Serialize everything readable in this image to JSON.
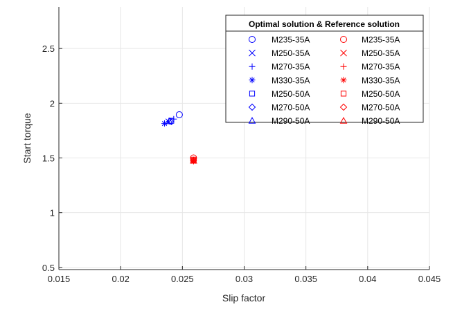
{
  "chart_data": {
    "type": "scatter",
    "title": "",
    "xlabel": "Slip factor",
    "ylabel": "Start torque",
    "xlim": [
      0.015,
      0.045
    ],
    "ylim": [
      0.48,
      2.88
    ],
    "x_ticks": [
      0.015,
      0.02,
      0.025,
      0.03,
      0.035,
      0.04,
      0.045
    ],
    "x_tick_labels": [
      "0.015",
      "0.02",
      "0.025",
      "0.03",
      "0.035",
      "0.04",
      "0.045"
    ],
    "y_ticks": [
      0.5,
      1,
      1.5,
      2,
      2.5
    ],
    "y_tick_labels": [
      "0.5",
      "1",
      "1.5",
      "2",
      "2.5"
    ],
    "grid": true,
    "legend": {
      "title": "Optimal solution & Reference solution",
      "placement": "top-right",
      "columns": 2
    },
    "series": [
      {
        "name": "M235-35A",
        "group": "optimal",
        "marker": "circle",
        "color": "#0000ff",
        "x": [
          0.02475
        ],
        "y": [
          1.895
        ]
      },
      {
        "name": "M250-35A",
        "group": "optimal",
        "marker": "x",
        "color": "#0000ff",
        "x": [
          0.0239
        ],
        "y": [
          1.83
        ]
      },
      {
        "name": "M270-35A",
        "group": "optimal",
        "marker": "plus",
        "color": "#0000ff",
        "x": [
          0.0243
        ],
        "y": [
          1.855
        ]
      },
      {
        "name": "M330-35A",
        "group": "optimal",
        "marker": "asterisk",
        "color": "#0000ff",
        "x": [
          0.02355
        ],
        "y": [
          1.815
        ]
      },
      {
        "name": "M250-50A",
        "group": "optimal",
        "marker": "square",
        "color": "#0000ff",
        "x": [
          0.0241
        ],
        "y": [
          1.84
        ]
      },
      {
        "name": "M270-50A",
        "group": "optimal",
        "marker": "diamond",
        "color": "#0000ff",
        "x": [
          0.024
        ],
        "y": [
          1.835
        ]
      },
      {
        "name": "M290-50A",
        "group": "optimal",
        "marker": "triangle",
        "color": "#0000ff",
        "x": [
          0.02395
        ],
        "y": [
          1.835
        ]
      },
      {
        "name": "M235-35A",
        "group": "reference",
        "marker": "circle",
        "color": "#ff0000",
        "x": [
          0.0259
        ],
        "y": [
          1.5
        ]
      },
      {
        "name": "M250-35A",
        "group": "reference",
        "marker": "x",
        "color": "#ff0000",
        "x": [
          0.0259
        ],
        "y": [
          1.48
        ]
      },
      {
        "name": "M270-35A",
        "group": "reference",
        "marker": "plus",
        "color": "#ff0000",
        "x": [
          0.0259
        ],
        "y": [
          1.475
        ]
      },
      {
        "name": "M330-35A",
        "group": "reference",
        "marker": "asterisk",
        "color": "#ff0000",
        "x": [
          0.0259
        ],
        "y": [
          1.47
        ]
      },
      {
        "name": "M250-50A",
        "group": "reference",
        "marker": "square",
        "color": "#ff0000",
        "x": [
          0.0259
        ],
        "y": [
          1.485
        ]
      },
      {
        "name": "M270-50A",
        "group": "reference",
        "marker": "diamond",
        "color": "#ff0000",
        "x": [
          0.0259
        ],
        "y": [
          1.48
        ]
      },
      {
        "name": "M290-50A",
        "group": "reference",
        "marker": "triangle",
        "color": "#ff0000",
        "x": [
          0.0259
        ],
        "y": [
          1.475
        ]
      }
    ]
  }
}
